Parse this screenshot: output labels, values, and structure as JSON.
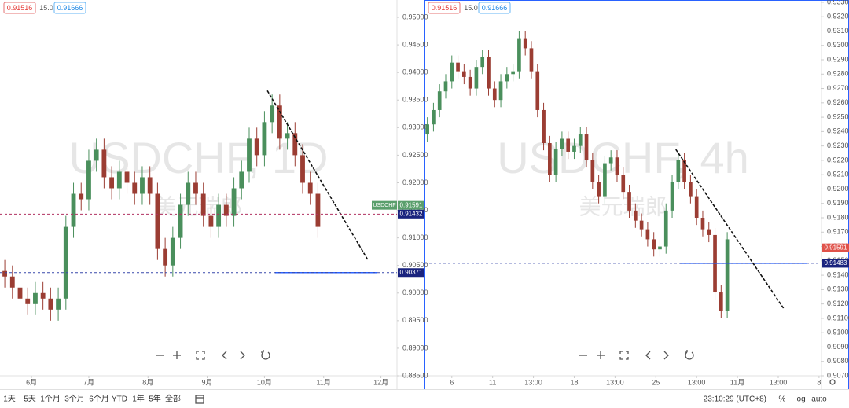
{
  "header": {
    "bid": 0.91516,
    "spread": {
      "value": 15,
      "label": "15.0"
    },
    "ask": 0.91666
  },
  "toolbar": {
    "ranges": [
      "1天",
      "5天",
      "1个月",
      "3个月",
      "6个月",
      "YTD",
      "1年",
      "5年",
      "全部"
    ],
    "time": "23:10:29 (UTC+8)",
    "options": [
      "%",
      "log",
      "auto"
    ]
  },
  "chart_data": [
    {
      "type": "candlestick",
      "title": "USDCHF, 1D",
      "subtitle": "美元瑞郎",
      "up_color": "#4a8f5c",
      "down_color": "#9b3d33",
      "grid": false,
      "x": [
        -14,
        -10,
        -6,
        -2,
        2,
        6,
        10,
        14,
        18,
        22,
        26,
        30,
        34,
        38,
        42,
        46,
        50,
        54,
        58,
        62,
        66,
        70,
        74,
        78,
        82,
        86,
        90,
        94,
        98,
        102,
        106,
        110,
        114,
        118,
        122,
        126,
        130,
        134,
        138,
        142,
        146,
        150
      ],
      "open": [
        0.904,
        0.903,
        0.901,
        0.899,
        0.898,
        0.9,
        0.899,
        0.897,
        0.899,
        0.912,
        0.918,
        0.917,
        0.924,
        0.926,
        0.921,
        0.919,
        0.922,
        0.92,
        0.918,
        0.921,
        0.918,
        0.908,
        0.905,
        0.91,
        0.916,
        0.92,
        0.918,
        0.914,
        0.912,
        0.916,
        0.914,
        0.919,
        0.922,
        0.928,
        0.925,
        0.931,
        0.934,
        0.928,
        0.929,
        0.925,
        0.92,
        0.918
      ],
      "high": [
        0.906,
        0.905,
        0.903,
        0.901,
        0.902,
        0.902,
        0.901,
        0.901,
        0.914,
        0.92,
        0.92,
        0.926,
        0.928,
        0.928,
        0.923,
        0.924,
        0.924,
        0.922,
        0.923,
        0.923,
        0.92,
        0.91,
        0.912,
        0.918,
        0.922,
        0.922,
        0.92,
        0.916,
        0.918,
        0.918,
        0.921,
        0.924,
        0.93,
        0.93,
        0.933,
        0.936,
        0.936,
        0.931,
        0.931,
        0.927,
        0.922,
        0.92
      ],
      "low": [
        0.901,
        0.899,
        0.897,
        0.896,
        0.896,
        0.897,
        0.895,
        0.895,
        0.897,
        0.91,
        0.915,
        0.915,
        0.922,
        0.919,
        0.917,
        0.917,
        0.918,
        0.916,
        0.916,
        0.916,
        0.906,
        0.903,
        0.903,
        0.908,
        0.914,
        0.916,
        0.912,
        0.91,
        0.91,
        0.912,
        0.912,
        0.917,
        0.92,
        0.923,
        0.923,
        0.929,
        0.926,
        0.926,
        0.923,
        0.918,
        0.916,
        0.91
      ],
      "close": [
        0.903,
        0.901,
        0.899,
        0.898,
        0.9,
        0.899,
        0.897,
        0.899,
        0.912,
        0.918,
        0.917,
        0.924,
        0.926,
        0.921,
        0.919,
        0.922,
        0.92,
        0.918,
        0.921,
        0.918,
        0.908,
        0.905,
        0.91,
        0.916,
        0.92,
        0.918,
        0.914,
        0.912,
        0.916,
        0.914,
        0.919,
        0.922,
        0.928,
        0.925,
        0.931,
        0.934,
        0.928,
        0.929,
        0.925,
        0.92,
        0.918,
        0.912
      ],
      "xlim": [
        -16.5,
        191.4
      ],
      "xticks": [
        {
          "value": 0,
          "label": "6月"
        },
        {
          "value": 30,
          "label": "7月"
        },
        {
          "value": 61,
          "label": "8月"
        },
        {
          "value": 92,
          "label": "9月"
        },
        {
          "value": 122,
          "label": "10月"
        },
        {
          "value": 153,
          "label": "11月"
        },
        {
          "value": 183,
          "label": "12月"
        }
      ],
      "ylim": [
        0.885,
        0.95314
      ],
      "yticks": [
        {
          "value": 0.885,
          "label": "0.88500"
        },
        {
          "value": 0.89,
          "label": "0.89000"
        },
        {
          "value": 0.895,
          "label": "0.89500"
        },
        {
          "value": 0.9,
          "label": "0.90000"
        },
        {
          "value": 0.905,
          "label": "0.90500"
        },
        {
          "value": 0.91,
          "label": "0.91000"
        },
        {
          "value": 0.915,
          "label": "0.91500"
        },
        {
          "value": 0.92,
          "label": "0.92000"
        },
        {
          "value": 0.925,
          "label": "0.92500"
        },
        {
          "value": 0.93,
          "label": "0.93000"
        },
        {
          "value": 0.935,
          "label": "0.93500"
        },
        {
          "value": 0.94,
          "label": "0.94000"
        },
        {
          "value": 0.945,
          "label": "0.94500"
        },
        {
          "value": 0.95,
          "label": "0.95000"
        }
      ],
      "price_labels": [
        {
          "value": 0.91591,
          "color": "#5a9f6c",
          "tag": "USDCHF"
        },
        {
          "value": 0.91432,
          "color": "#1a237e",
          "line_color": "#b03060"
        },
        {
          "value": 0.90371,
          "color": "#1a237e",
          "line_color": "#3949ab"
        }
      ],
      "segments": [
        {
          "y": 0.90371,
          "x": [
            127.6,
            181
          ],
          "color": "#2962ff"
        }
      ],
      "trendline": {
        "x": [
          123.5,
          176
        ],
        "y": [
          0.9367,
          0.9061
        ]
      }
    },
    {
      "type": "candlestick",
      "title": "USDCHF, 4h",
      "subtitle": "美元瑞郎",
      "up_color": "#4a8f5c",
      "down_color": "#9b3d33",
      "grid": false,
      "x": [
        -0.6,
        -0.45,
        -0.3,
        -0.15,
        0,
        0.15,
        0.3,
        0.45,
        0.6,
        0.75,
        0.9,
        1.05,
        1.2,
        1.35,
        1.5,
        1.65,
        1.8,
        1.95,
        2.1,
        2.25,
        2.4,
        2.55,
        2.7,
        2.85,
        3,
        3.15,
        3.3,
        3.45,
        3.6,
        3.75,
        3.9,
        4.05,
        4.2,
        4.35,
        4.5,
        4.65,
        4.8,
        4.95,
        5.1,
        5.25,
        5.4,
        5.55,
        5.7,
        5.85,
        6,
        6.15,
        6.3,
        6.45,
        6.6,
        6.75
      ],
      "open": [
        0.9238,
        0.9245,
        0.9255,
        0.9268,
        0.9275,
        0.9288,
        0.9282,
        0.9278,
        0.927,
        0.9285,
        0.9292,
        0.927,
        0.9262,
        0.9275,
        0.928,
        0.9282,
        0.9305,
        0.9298,
        0.9282,
        0.9255,
        0.9232,
        0.921,
        0.9228,
        0.9235,
        0.9226,
        0.923,
        0.9238,
        0.922,
        0.9205,
        0.9195,
        0.9218,
        0.9222,
        0.921,
        0.9198,
        0.9185,
        0.9178,
        0.9172,
        0.9165,
        0.9158,
        0.916,
        0.9185,
        0.9205,
        0.922,
        0.9205,
        0.9195,
        0.918,
        0.9172,
        0.9168,
        0.9128,
        0.9115
      ],
      "high": [
        0.925,
        0.926,
        0.9273,
        0.928,
        0.9293,
        0.9293,
        0.9287,
        0.9283,
        0.929,
        0.9297,
        0.9297,
        0.9275,
        0.928,
        0.9285,
        0.9287,
        0.931,
        0.931,
        0.9303,
        0.9287,
        0.926,
        0.9237,
        0.9233,
        0.924,
        0.924,
        0.9235,
        0.9243,
        0.9243,
        0.9225,
        0.921,
        0.9223,
        0.9227,
        0.9227,
        0.9215,
        0.9203,
        0.919,
        0.9183,
        0.9177,
        0.917,
        0.9165,
        0.919,
        0.921,
        0.9225,
        0.9225,
        0.921,
        0.92,
        0.9185,
        0.9177,
        0.9173,
        0.9133,
        0.917
      ],
      "low": [
        0.9233,
        0.924,
        0.925,
        0.9263,
        0.927,
        0.9277,
        0.9273,
        0.9265,
        0.9265,
        0.928,
        0.9265,
        0.9257,
        0.9257,
        0.927,
        0.9275,
        0.9277,
        0.9293,
        0.9277,
        0.925,
        0.9227,
        0.9205,
        0.9205,
        0.9223,
        0.9221,
        0.9221,
        0.9225,
        0.9215,
        0.92,
        0.919,
        0.919,
        0.9213,
        0.9205,
        0.9193,
        0.918,
        0.9173,
        0.9167,
        0.916,
        0.9153,
        0.9153,
        0.9155,
        0.918,
        0.92,
        0.92,
        0.919,
        0.9175,
        0.9167,
        0.9163,
        0.9123,
        0.911,
        0.911
      ],
      "close": [
        0.9245,
        0.9255,
        0.9268,
        0.9275,
        0.9288,
        0.9282,
        0.9278,
        0.927,
        0.9285,
        0.9292,
        0.927,
        0.9262,
        0.9275,
        0.928,
        0.9282,
        0.9305,
        0.9298,
        0.9282,
        0.9255,
        0.9232,
        0.921,
        0.9228,
        0.9235,
        0.9226,
        0.923,
        0.9238,
        0.922,
        0.9205,
        0.9195,
        0.9218,
        0.9222,
        0.921,
        0.9198,
        0.9185,
        0.9178,
        0.9172,
        0.9165,
        0.9158,
        0.916,
        0.9185,
        0.9205,
        0.922,
        0.9205,
        0.9195,
        0.918,
        0.9172,
        0.9168,
        0.9128,
        0.9115,
        0.9165
      ],
      "xlim": [
        -0.67,
        9.06
      ],
      "xticks": [
        {
          "value": 0,
          "label": "6"
        },
        {
          "value": 1,
          "label": "11"
        },
        {
          "value": 2,
          "label": "13:00"
        },
        {
          "value": 3,
          "label": "18"
        },
        {
          "value": 4,
          "label": "13:00"
        },
        {
          "value": 5,
          "label": "25"
        },
        {
          "value": 6,
          "label": "13:00"
        },
        {
          "value": 7,
          "label": "11月"
        },
        {
          "value": 8,
          "label": "13:00"
        },
        {
          "value": 9,
          "label": "8"
        }
      ],
      "ylim": [
        0.907,
        0.93316
      ],
      "yticks": [
        {
          "value": 0.907,
          "label": "0.90700"
        },
        {
          "value": 0.908,
          "label": "0.90800"
        },
        {
          "value": 0.909,
          "label": "0.90900"
        },
        {
          "value": 0.91,
          "label": "0.91000"
        },
        {
          "value": 0.911,
          "label": "0.91100"
        },
        {
          "value": 0.912,
          "label": "0.91200"
        },
        {
          "value": 0.913,
          "label": "0.91300"
        },
        {
          "value": 0.914,
          "label": "0.91400"
        },
        {
          "value": 0.915,
          "label": "0.91500"
        },
        {
          "value": 0.916,
          "label": "0.91600"
        },
        {
          "value": 0.917,
          "label": "0.91700"
        },
        {
          "value": 0.918,
          "label": "0.91800"
        },
        {
          "value": 0.919,
          "label": "0.91900"
        },
        {
          "value": 0.92,
          "label": "0.92000"
        },
        {
          "value": 0.921,
          "label": "0.92100"
        },
        {
          "value": 0.922,
          "label": "0.92200"
        },
        {
          "value": 0.923,
          "label": "0.92300"
        },
        {
          "value": 0.924,
          "label": "0.92400"
        },
        {
          "value": 0.925,
          "label": "0.92500"
        },
        {
          "value": 0.926,
          "label": "0.92600"
        },
        {
          "value": 0.927,
          "label": "0.92700"
        },
        {
          "value": 0.928,
          "label": "0.92800"
        },
        {
          "value": 0.929,
          "label": "0.92900"
        },
        {
          "value": 0.93,
          "label": "0.93000"
        },
        {
          "value": 0.931,
          "label": "0.93100"
        },
        {
          "value": 0.932,
          "label": "0.93200"
        },
        {
          "value": 0.933,
          "label": "0.93300"
        }
      ],
      "price_labels": [
        {
          "value": 0.91591,
          "color": "#e0524a"
        },
        {
          "value": 0.91483,
          "color": "#1a237e",
          "line_color": "#3949ab"
        }
      ],
      "segments": [
        {
          "y": 0.91483,
          "x": [
            5.59,
            8.71
          ],
          "color": "#2962ff"
        }
      ],
      "trendline": {
        "x": [
          5.49,
          8.13
        ],
        "y": [
          0.92276,
          0.9117
        ]
      }
    }
  ]
}
